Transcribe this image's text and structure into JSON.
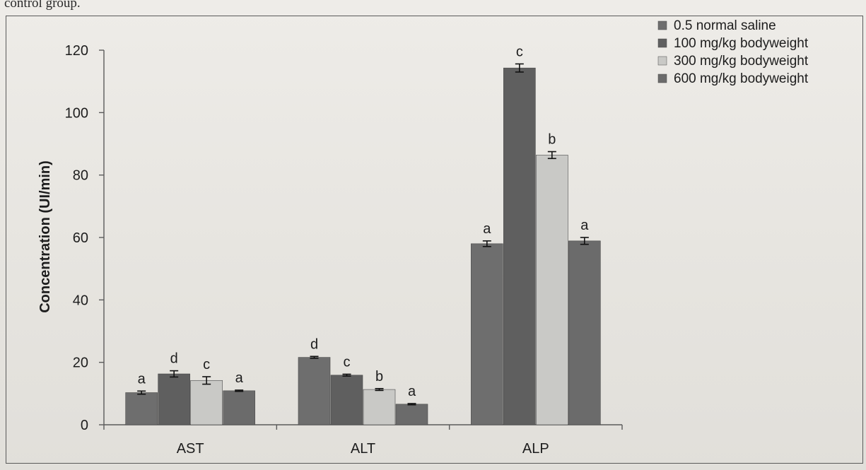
{
  "caption_fragment": "control group.",
  "chart_data": {
    "type": "bar",
    "title": "",
    "xlabel": "",
    "ylabel": "Concentration (UI/min)",
    "ylim": [
      0,
      120
    ],
    "yticks": [
      0,
      20,
      40,
      60,
      80,
      100,
      120
    ],
    "grid": false,
    "legend_position": "top-right",
    "categories": [
      "AST",
      "ALT",
      "ALP"
    ],
    "series": [
      {
        "name": "0.5 normal saline",
        "color": "#6e6e6e",
        "values": [
          10.3,
          21.6,
          58.0
        ],
        "errors": [
          0.5,
          0.3,
          0.9
        ],
        "labels": [
          "a",
          "d",
          "a"
        ]
      },
      {
        "name": "100 mg/kg bodyweight",
        "color": "#5f5f5f",
        "values": [
          16.3,
          15.9,
          114.3
        ],
        "errors": [
          1.0,
          0.3,
          1.3
        ],
        "labels": [
          "d",
          "c",
          "c"
        ]
      },
      {
        "name": "300 mg/kg bodyweight",
        "color": "#c9c9c6",
        "values": [
          14.2,
          11.3,
          86.4
        ],
        "errors": [
          1.2,
          0.3,
          1.1
        ],
        "labels": [
          "c",
          "b",
          "b"
        ]
      },
      {
        "name": "600 mg/kg bodyweight",
        "color": "#6b6b6b",
        "values": [
          10.9,
          6.6,
          58.9
        ],
        "errors": [
          0.2,
          0.2,
          1.1
        ],
        "labels": [
          "a",
          "a",
          "a"
        ]
      }
    ]
  }
}
